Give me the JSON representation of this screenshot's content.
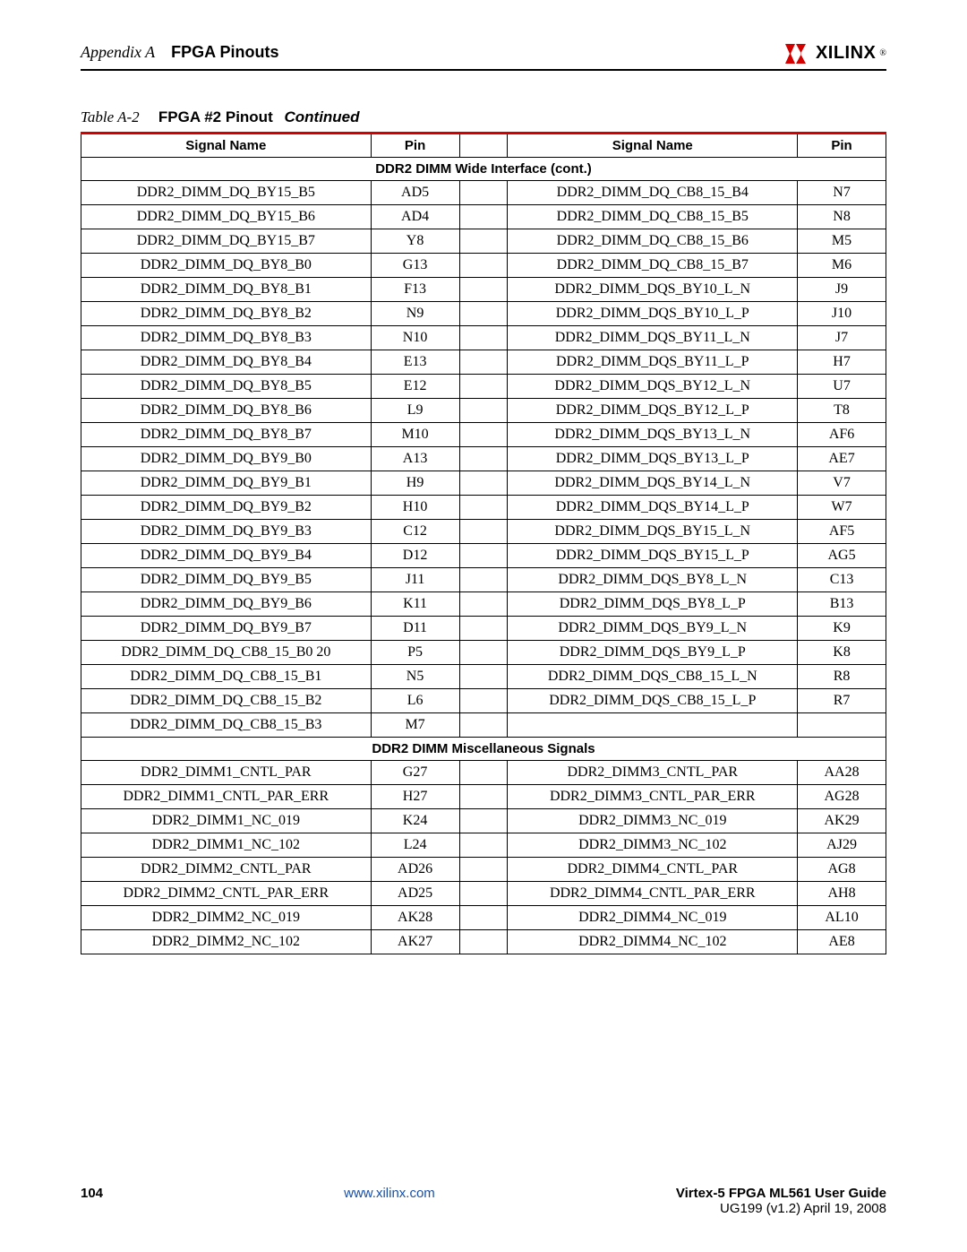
{
  "header": {
    "appendix_label": "Appendix A",
    "section_title": "FPGA Pinouts",
    "logo_text": "XILINX",
    "logo_color": "#000000",
    "logo_mark_color": "#d40000"
  },
  "caption": {
    "label": "Table  A-2",
    "title": "FPGA #2 Pinout",
    "continued": "Continued"
  },
  "table": {
    "columns": [
      "Signal Name",
      "Pin",
      "",
      "Signal Name",
      "Pin"
    ],
    "col_widths_pct": [
      36,
      11,
      6,
      36,
      11
    ],
    "border_color": "#000000",
    "accent_color": "#d40000",
    "header_fontsize": 15,
    "cell_fontsize": 16,
    "sections": [
      {
        "title": "DDR2 DIMM Wide Interface (cont.)",
        "rows": [
          [
            "DDR2_DIMM_DQ_BY15_B5",
            "AD5",
            "DDR2_DIMM_DQ_CB8_15_B4",
            "N7"
          ],
          [
            "DDR2_DIMM_DQ_BY15_B6",
            "AD4",
            "DDR2_DIMM_DQ_CB8_15_B5",
            "N8"
          ],
          [
            "DDR2_DIMM_DQ_BY15_B7",
            "Y8",
            "DDR2_DIMM_DQ_CB8_15_B6",
            "M5"
          ],
          [
            "DDR2_DIMM_DQ_BY8_B0",
            "G13",
            "DDR2_DIMM_DQ_CB8_15_B7",
            "M6"
          ],
          [
            "DDR2_DIMM_DQ_BY8_B1",
            "F13",
            "DDR2_DIMM_DQS_BY10_L_N",
            "J9"
          ],
          [
            "DDR2_DIMM_DQ_BY8_B2",
            "N9",
            "DDR2_DIMM_DQS_BY10_L_P",
            "J10"
          ],
          [
            "DDR2_DIMM_DQ_BY8_B3",
            "N10",
            "DDR2_DIMM_DQS_BY11_L_N",
            "J7"
          ],
          [
            "DDR2_DIMM_DQ_BY8_B4",
            "E13",
            "DDR2_DIMM_DQS_BY11_L_P",
            "H7"
          ],
          [
            "DDR2_DIMM_DQ_BY8_B5",
            "E12",
            "DDR2_DIMM_DQS_BY12_L_N",
            "U7"
          ],
          [
            "DDR2_DIMM_DQ_BY8_B6",
            "L9",
            "DDR2_DIMM_DQS_BY12_L_P",
            "T8"
          ],
          [
            "DDR2_DIMM_DQ_BY8_B7",
            "M10",
            "DDR2_DIMM_DQS_BY13_L_N",
            "AF6"
          ],
          [
            "DDR2_DIMM_DQ_BY9_B0",
            "A13",
            "DDR2_DIMM_DQS_BY13_L_P",
            "AE7"
          ],
          [
            "DDR2_DIMM_DQ_BY9_B1",
            "H9",
            "DDR2_DIMM_DQS_BY14_L_N",
            "V7"
          ],
          [
            "DDR2_DIMM_DQ_BY9_B2",
            "H10",
            "DDR2_DIMM_DQS_BY14_L_P",
            "W7"
          ],
          [
            "DDR2_DIMM_DQ_BY9_B3",
            "C12",
            "DDR2_DIMM_DQS_BY15_L_N",
            "AF5"
          ],
          [
            "DDR2_DIMM_DQ_BY9_B4",
            "D12",
            "DDR2_DIMM_DQS_BY15_L_P",
            "AG5"
          ],
          [
            "DDR2_DIMM_DQ_BY9_B5",
            "J11",
            "DDR2_DIMM_DQS_BY8_L_N",
            "C13"
          ],
          [
            "DDR2_DIMM_DQ_BY9_B6",
            "K11",
            "DDR2_DIMM_DQS_BY8_L_P",
            "B13"
          ],
          [
            "DDR2_DIMM_DQ_BY9_B7",
            "D11",
            "DDR2_DIMM_DQS_BY9_L_N",
            "K9"
          ],
          [
            "DDR2_DIMM_DQ_CB8_15_B0 20",
            "P5",
            "DDR2_DIMM_DQS_BY9_L_P",
            "K8"
          ],
          [
            "DDR2_DIMM_DQ_CB8_15_B1",
            "N5",
            "DDR2_DIMM_DQS_CB8_15_L_N",
            "R8"
          ],
          [
            "DDR2_DIMM_DQ_CB8_15_B2",
            "L6",
            "DDR2_DIMM_DQS_CB8_15_L_P",
            "R7"
          ],
          [
            "DDR2_DIMM_DQ_CB8_15_B3",
            "M7",
            "",
            ""
          ]
        ]
      },
      {
        "title": "DDR2 DIMM Miscellaneous Signals",
        "rows": [
          [
            "DDR2_DIMM1_CNTL_PAR",
            "G27",
            "DDR2_DIMM3_CNTL_PAR",
            "AA28"
          ],
          [
            "DDR2_DIMM1_CNTL_PAR_ERR",
            "H27",
            "DDR2_DIMM3_CNTL_PAR_ERR",
            "AG28"
          ],
          [
            "DDR2_DIMM1_NC_019",
            "K24",
            "DDR2_DIMM3_NC_019",
            "AK29"
          ],
          [
            "DDR2_DIMM1_NC_102",
            "L24",
            "DDR2_DIMM3_NC_102",
            "AJ29"
          ],
          [
            "DDR2_DIMM2_CNTL_PAR",
            "AD26",
            "DDR2_DIMM4_CNTL_PAR",
            "AG8"
          ],
          [
            "DDR2_DIMM2_CNTL_PAR_ERR",
            "AD25",
            "DDR2_DIMM4_CNTL_PAR_ERR",
            "AH8"
          ],
          [
            "DDR2_DIMM2_NC_019",
            "AK28",
            "DDR2_DIMM4_NC_019",
            "AL10"
          ],
          [
            "DDR2_DIMM2_NC_102",
            "AK27",
            "DDR2_DIMM4_NC_102",
            "AE8"
          ]
        ]
      }
    ]
  },
  "footer": {
    "page_number": "104",
    "url": "www.xilinx.com",
    "url_color": "#1a4fa3",
    "guide_title": "Virtex-5 FPGA ML561 User Guide",
    "version_line": "UG199 (v1.2) April 19, 2008"
  }
}
